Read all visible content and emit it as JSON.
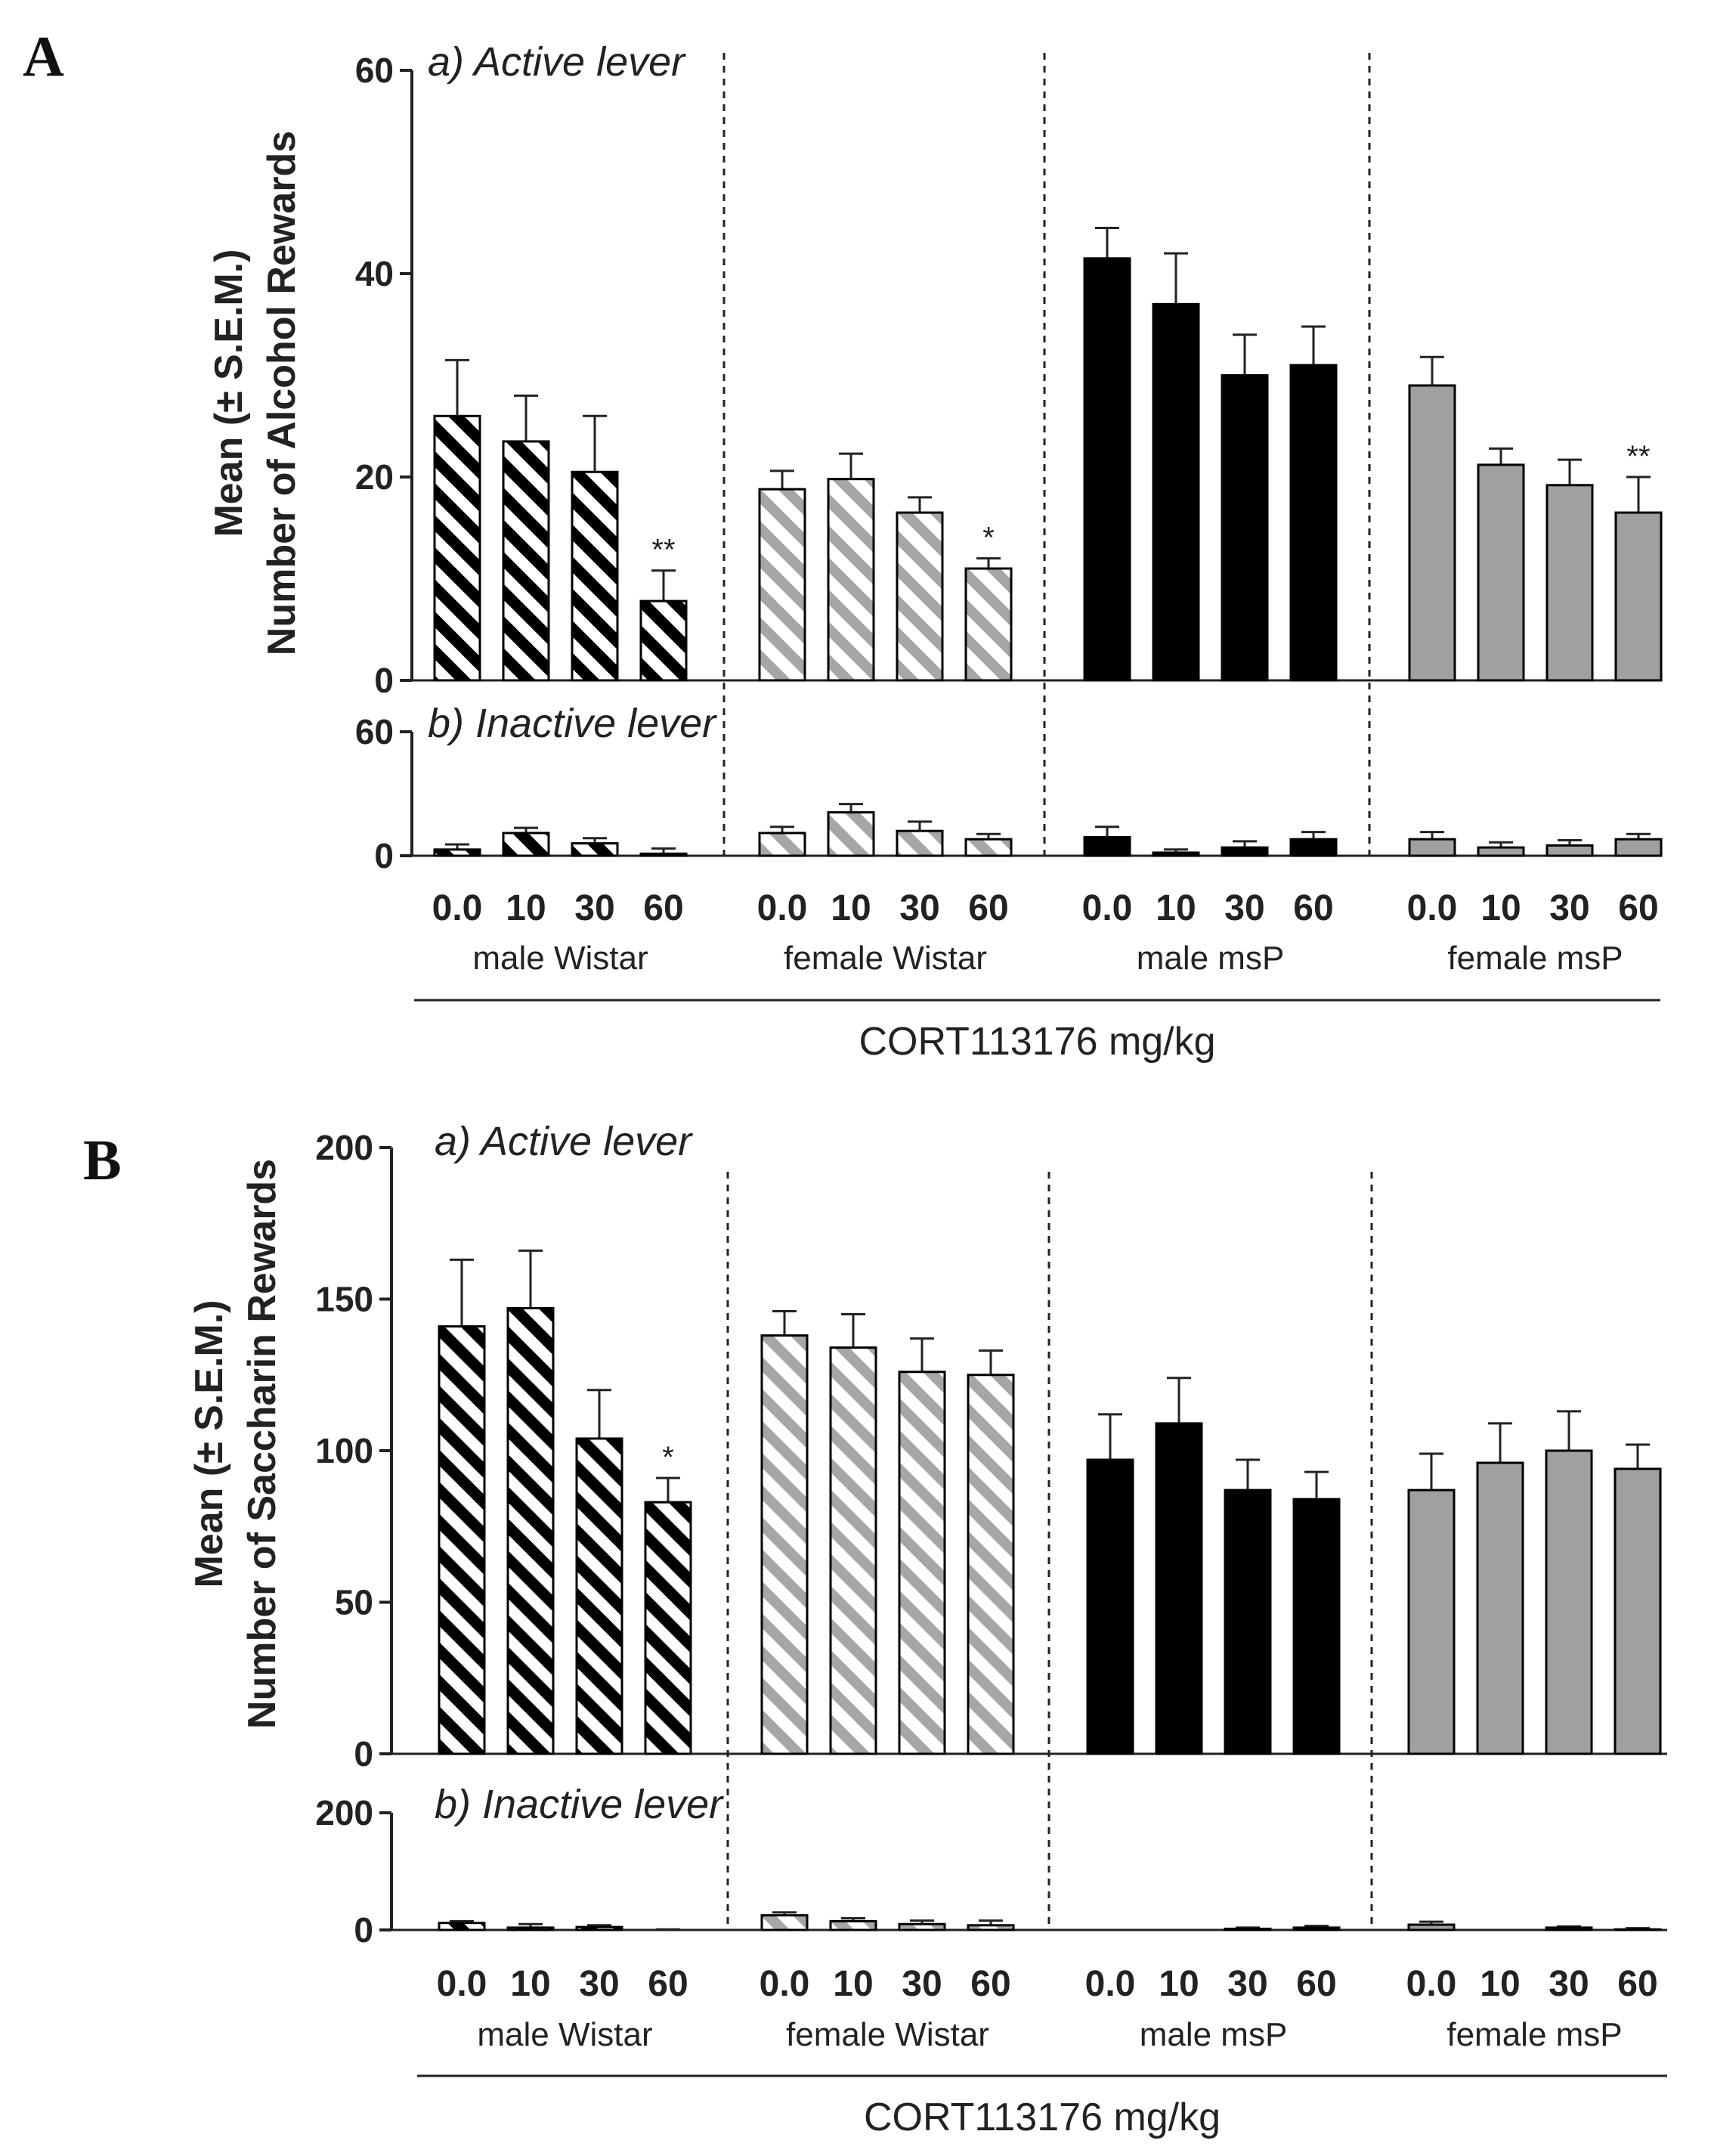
{
  "chart_data": [
    {
      "type": "bar",
      "panel": "A",
      "ylabel": [
        "Mean (± S.E.M.)",
        "Number of Alcohol Rewards"
      ],
      "xlabel": "CORT113176 mg/kg",
      "doses": [
        "0.0",
        "10",
        "30",
        "60"
      ],
      "groups": [
        {
          "name": "male Wistar",
          "fill": "hatch-black"
        },
        {
          "name": "female Wistar",
          "fill": "hatch-gray"
        },
        {
          "name": "male msP",
          "fill": "#000000"
        },
        {
          "name": "female msP",
          "fill": "#a0a0a0"
        }
      ],
      "subplots": [
        {
          "title": "a) Active lever",
          "ylim": [
            0,
            60
          ],
          "yticks": [
            "0",
            "20",
            "40",
            "60"
          ],
          "values": [
            [
              26,
              23.5,
              20.5,
              7.8
            ],
            [
              18.8,
              19.8,
              16.5,
              11
            ],
            [
              41.5,
              37,
              30,
              31
            ],
            [
              29,
              21.2,
              19.2,
              16.5
            ]
          ],
          "errors": [
            [
              5.5,
              4.5,
              5.5,
              3
            ],
            [
              1.8,
              2.5,
              1.5,
              1
            ],
            [
              3,
              5,
              4,
              3.8
            ],
            [
              2.8,
              1.6,
              2.5,
              3.5
            ]
          ],
          "significance": [
            [
              "",
              "",
              "",
              "**"
            ],
            [
              "",
              "",
              "",
              "*"
            ],
            [
              "",
              "",
              "",
              ""
            ],
            [
              "",
              "",
              "",
              "**"
            ]
          ]
        },
        {
          "title": "b) Inactive lever",
          "ylim": [
            0,
            60
          ],
          "yticks": [
            "0",
            "60"
          ],
          "values": [
            [
              3,
              11,
              6,
              1
            ],
            [
              11,
              21,
              12,
              8
            ],
            [
              9,
              1.5,
              4,
              8
            ],
            [
              8,
              4,
              5,
              8
            ]
          ],
          "errors": [
            [
              2.5,
              2.5,
              2.5,
              2.5
            ],
            [
              3,
              4,
              4.5,
              2.5
            ],
            [
              5,
              1.5,
              3,
              3.5
            ],
            [
              3.5,
              2.5,
              2.5,
              2.5
            ]
          ],
          "significance": [
            [
              "",
              "",
              "",
              ""
            ],
            [
              "",
              "",
              "",
              ""
            ],
            [
              "",
              "",
              "",
              ""
            ],
            [
              "",
              "",
              "",
              ""
            ]
          ]
        }
      ]
    },
    {
      "type": "bar",
      "panel": "B",
      "ylabel": [
        "Mean (± S.E.M.)",
        "Number of Saccharin Rewards"
      ],
      "xlabel": "CORT113176 mg/kg",
      "doses": [
        "0.0",
        "10",
        "30",
        "60"
      ],
      "groups": [
        {
          "name": "male Wistar",
          "fill": "hatch-black"
        },
        {
          "name": "female Wistar",
          "fill": "hatch-gray"
        },
        {
          "name": "male msP",
          "fill": "#000000"
        },
        {
          "name": "female msP",
          "fill": "#a0a0a0"
        }
      ],
      "subplots": [
        {
          "title": "a) Active lever",
          "ylim": [
            0,
            200
          ],
          "yticks": [
            "0",
            "50",
            "100",
            "150",
            "200"
          ],
          "values": [
            [
              141,
              147,
              104,
              83
            ],
            [
              138,
              134,
              126,
              125
            ],
            [
              97,
              109,
              87,
              84
            ],
            [
              87,
              96,
              100,
              94
            ]
          ],
          "errors": [
            [
              22,
              19,
              16,
              8
            ],
            [
              8,
              11,
              11,
              8
            ],
            [
              15,
              15,
              10,
              9
            ],
            [
              12,
              13,
              13,
              8
            ]
          ],
          "significance": [
            [
              "",
              "",
              "",
              "*"
            ],
            [
              "",
              "",
              "",
              ""
            ],
            [
              "",
              "",
              "",
              ""
            ],
            [
              "",
              "",
              "",
              ""
            ]
          ]
        },
        {
          "title": "b) Inactive lever",
          "ylim": [
            0,
            200
          ],
          "yticks": [
            "0",
            "200"
          ],
          "values": [
            [
              12,
              4,
              5,
              0
            ],
            [
              25,
              15,
              10,
              8
            ],
            [
              0,
              0,
              2,
              4
            ],
            [
              9,
              0,
              4,
              1
            ]
          ],
          "errors": [
            [
              3,
              6,
              3,
              1
            ],
            [
              5,
              5,
              6,
              8
            ],
            [
              0,
              0,
              2,
              3
            ],
            [
              5,
              0,
              2,
              2
            ]
          ],
          "significance": [
            [
              "",
              "",
              "",
              ""
            ],
            [
              "",
              "",
              "",
              ""
            ],
            [
              "",
              "",
              "",
              ""
            ],
            [
              "",
              "",
              "",
              ""
            ]
          ]
        }
      ]
    }
  ]
}
